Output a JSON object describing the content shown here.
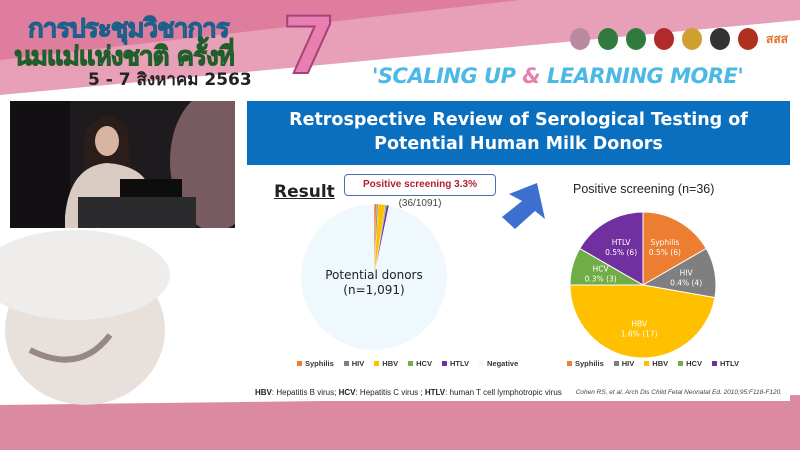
{
  "banner": {
    "title_line1": "การประชุมวิชาการ",
    "title_line2": "นมแม่แห่งชาติ ครั้งที่",
    "edition": "7",
    "dates": "5 - 7 สิงหาคม 2563",
    "slogan_part1": "'SCALING UP ",
    "slogan_amp": "&",
    "slogan_part2": " LEARNING MORE'",
    "logo_text": "สสส"
  },
  "slide": {
    "title_line1": "Retrospective Review of Serological Testing of",
    "title_line2": "Potential Human Milk Donors",
    "section": "Result",
    "callout_bold": "Positive screening 3.3%",
    "callout_rest": " (36/1091)",
    "footer_hbv": "HBV",
    "footer_hbv_text": ": Hepatitis B virus; ",
    "footer_hcv": "HCV",
    "footer_hcv_text": ": Hepatitis C virus ; ",
    "footer_htlv": "HTLV",
    "footer_htlv_text": ": human T cell lymphotropic virus",
    "citation": "Cohen RS, et al. Arch Dis Child Fetal Neonatal Ed. 2010;95:F118-F120."
  },
  "chart_data": [
    {
      "type": "pie",
      "title": "",
      "center_label": [
        "Potential donors",
        "(n=1,091)"
      ],
      "categories": [
        "Syphilis",
        "HIV",
        "HBV",
        "HCV",
        "HTLV",
        "Negative"
      ],
      "values": [
        6,
        4,
        17,
        3,
        6,
        1055
      ],
      "colors": [
        "#ed7d31",
        "#7f7f7f",
        "#ffc000",
        "#70ad47",
        "#7030a0",
        "#eef8fd"
      ],
      "legend": "bottom"
    },
    {
      "type": "pie",
      "title": "Positive screening (n=36)",
      "categories": [
        "Syphilis",
        "HIV",
        "HBV",
        "HCV",
        "HTLV"
      ],
      "values": [
        6,
        4,
        17,
        3,
        6
      ],
      "data_labels": [
        "0.5% (6)",
        "0.4% (4)",
        "1.6% (17)",
        "0.3% (3)",
        "0.5% (6)"
      ],
      "colors": [
        "#ed7d31",
        "#7f7f7f",
        "#ffc000",
        "#70ad47",
        "#7030a0"
      ],
      "legend": "bottom"
    }
  ]
}
